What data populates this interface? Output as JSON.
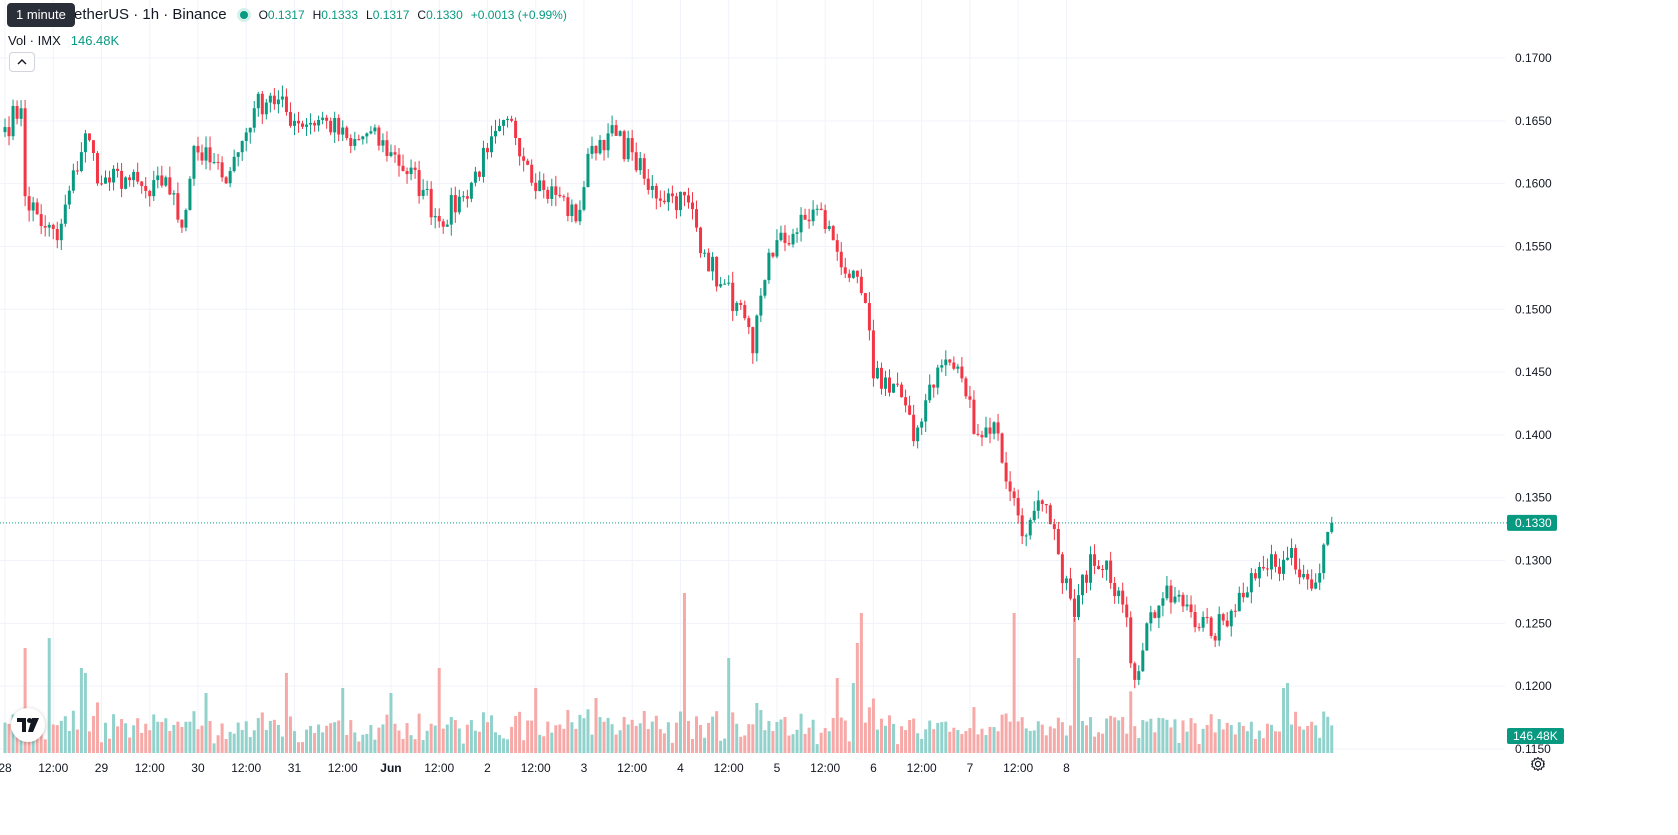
{
  "legend": {
    "tooltip": "1 minute",
    "symbol": "etherUS · 1h · Binance",
    "o_key": "O",
    "o_val": "0.1317",
    "h_key": "H",
    "h_val": "0.1333",
    "l_key": "L",
    "l_val": "0.1317",
    "c_key": "C",
    "c_val": "0.1330",
    "change": "+0.0013 (+0.99%)",
    "vol_label": "Vol · IMX",
    "vol_value": "146.48K"
  },
  "colors": {
    "up": "#089981",
    "down": "#f23645",
    "vol_up": "#92d2cc",
    "vol_down": "#f7a9a7",
    "grid": "#f0f3fa",
    "text": "#131722"
  },
  "icons": {
    "collapse": "chevron-up-icon",
    "logo": "tradingview-logo-icon",
    "settings": "gear-icon"
  },
  "chart_data": {
    "type": "candlestick",
    "interval": "1h",
    "y_axis": {
      "ticks": [
        "0.1700",
        "0.1650",
        "0.1600",
        "0.1550",
        "0.1500",
        "0.1450",
        "0.1400",
        "0.1350",
        "0.1300",
        "0.1250",
        "0.1200",
        "0.1150"
      ],
      "range": [
        0.1145,
        0.1718
      ],
      "last_price_label": "0.1330",
      "volume_label": "146.48K"
    },
    "x_axis": {
      "ticks": [
        "28",
        "12:00",
        "29",
        "12:00",
        "30",
        "12:00",
        "31",
        "12:00",
        "Jun",
        "12:00",
        "2",
        "12:00",
        "3",
        "12:00",
        "4",
        "12:00",
        "5",
        "12:00",
        "6",
        "12:00",
        "7",
        "12:00",
        "8"
      ],
      "bold": [
        "Jun"
      ]
    },
    "candle_period_hours": 1,
    "first_candle_hour": 0,
    "anchor_closes": [
      [
        0,
        0.1645
      ],
      [
        4,
        0.166
      ],
      [
        5,
        0.159
      ],
      [
        10,
        0.1565
      ],
      [
        13,
        0.1555
      ],
      [
        20,
        0.164
      ],
      [
        24,
        0.16
      ],
      [
        30,
        0.1605
      ],
      [
        36,
        0.159
      ],
      [
        40,
        0.1605
      ],
      [
        44,
        0.1565
      ],
      [
        47,
        0.163
      ],
      [
        54,
        0.1605
      ],
      [
        58,
        0.1625
      ],
      [
        62,
        0.166
      ],
      [
        66,
        0.167
      ],
      [
        72,
        0.165
      ],
      [
        80,
        0.165
      ],
      [
        86,
        0.163
      ],
      [
        90,
        0.164
      ],
      [
        96,
        0.1625
      ],
      [
        104,
        0.1595
      ],
      [
        108,
        0.157
      ],
      [
        114,
        0.159
      ],
      [
        120,
        0.1625
      ],
      [
        126,
        0.165
      ],
      [
        130,
        0.1615
      ],
      [
        134,
        0.1595
      ],
      [
        138,
        0.159
      ],
      [
        142,
        0.157
      ],
      [
        146,
        0.163
      ],
      [
        150,
        0.164
      ],
      [
        156,
        0.1625
      ],
      [
        160,
        0.1595
      ],
      [
        166,
        0.159
      ],
      [
        170,
        0.1585
      ],
      [
        174,
        0.1545
      ],
      [
        178,
        0.152
      ],
      [
        182,
        0.1505
      ],
      [
        186,
        0.1465
      ],
      [
        190,
        0.1545
      ],
      [
        196,
        0.156
      ],
      [
        202,
        0.158
      ],
      [
        206,
        0.1555
      ],
      [
        210,
        0.1525
      ],
      [
        214,
        0.1505
      ],
      [
        216,
        0.1445
      ],
      [
        222,
        0.144
      ],
      [
        226,
        0.1395
      ],
      [
        230,
        0.144
      ],
      [
        234,
        0.146
      ],
      [
        238,
        0.1445
      ],
      [
        242,
        0.14
      ],
      [
        246,
        0.141
      ],
      [
        250,
        0.1355
      ],
      [
        254,
        0.132
      ],
      [
        258,
        0.1345
      ],
      [
        262,
        0.1305
      ],
      [
        266,
        0.1255
      ],
      [
        270,
        0.1305
      ],
      [
        274,
        0.13
      ],
      [
        278,
        0.1265
      ],
      [
        281,
        0.1205
      ],
      [
        284,
        0.125
      ],
      [
        288,
        0.127
      ],
      [
        294,
        0.1265
      ],
      [
        300,
        0.124
      ],
      [
        305,
        0.126
      ],
      [
        310,
        0.129
      ],
      [
        316,
        0.1295
      ],
      [
        320,
        0.131
      ],
      [
        324,
        0.1285
      ],
      [
        327,
        0.129
      ],
      [
        330,
        0.133
      ]
    ],
    "volume_spikes": [
      [
        5,
        105
      ],
      [
        11,
        115
      ],
      [
        19,
        85
      ],
      [
        20,
        80
      ],
      [
        50,
        60
      ],
      [
        70,
        80
      ],
      [
        84,
        65
      ],
      [
        96,
        60
      ],
      [
        108,
        85
      ],
      [
        132,
        65
      ],
      [
        147,
        55
      ],
      [
        169,
        160
      ],
      [
        180,
        95
      ],
      [
        207,
        75
      ],
      [
        211,
        70
      ],
      [
        212,
        110
      ],
      [
        213,
        140
      ],
      [
        251,
        140
      ],
      [
        266,
        135
      ],
      [
        267,
        95
      ],
      [
        318,
        65
      ],
      [
        319,
        70
      ]
    ]
  }
}
